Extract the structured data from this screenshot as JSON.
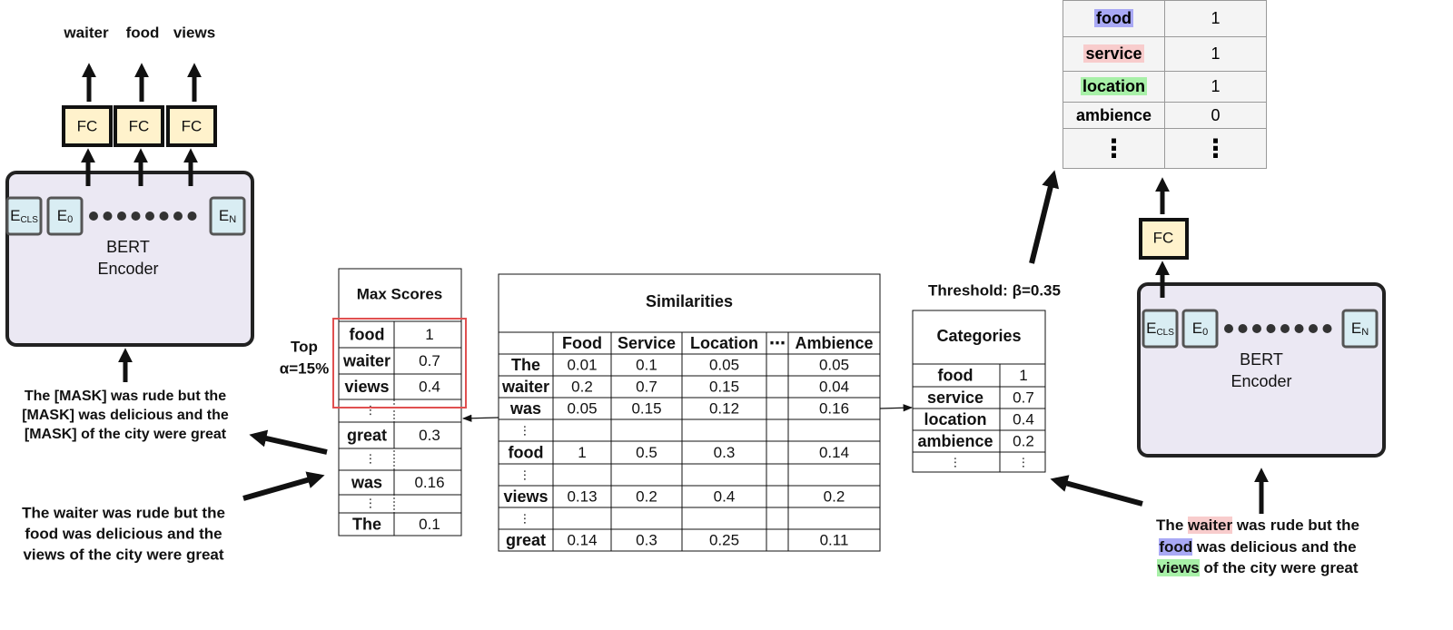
{
  "left_model": {
    "outputs": [
      "waiter",
      "food",
      "views"
    ],
    "fc": [
      "FC",
      "FC",
      "FC"
    ],
    "embeddings": [
      {
        "main": "E",
        "sub": "CLS"
      },
      {
        "main": "E",
        "sub": "0"
      },
      {
        "main": "E",
        "sub": "N"
      }
    ],
    "encoder": [
      "BERT",
      "Encoder"
    ],
    "masked_sentence": [
      "The [MASK] was rude but the",
      "[MASK] was delicious and the",
      "[MASK] of the city were great"
    ]
  },
  "original_sentence": [
    "The waiter was rude but the",
    "food was delicious and the",
    "views of the city were great"
  ],
  "max_scores": {
    "title": "Max Scores",
    "top": [
      "Top",
      "α=15%"
    ],
    "rows": [
      [
        "food",
        "1"
      ],
      [
        "waiter",
        "0.7"
      ],
      [
        "views",
        "0.4"
      ],
      [
        "⋮"
      ],
      [
        "great",
        "0.3"
      ],
      [
        "⋮"
      ],
      [
        "was",
        "0.16"
      ],
      [
        "⋮"
      ],
      [
        "The",
        "0.1"
      ]
    ]
  },
  "similarities": {
    "title": "Similarities",
    "header": [
      "Food",
      "Service",
      "Location",
      "⋯",
      "Ambience"
    ],
    "rows": [
      [
        "The",
        "0.01",
        "0.1",
        "0.05",
        "0.05"
      ],
      [
        "waiter",
        "0.2",
        "0.7",
        "0.15",
        "0.04"
      ],
      [
        "was",
        "0.05",
        "0.15",
        "0.12",
        "0.16"
      ],
      [
        "⋮"
      ],
      [
        "food",
        "1",
        "0.5",
        "0.3",
        "0.14"
      ],
      [
        "⋮"
      ],
      [
        "views",
        "0.13",
        "0.2",
        "0.4",
        "0.2"
      ],
      [
        "⋮"
      ],
      [
        "great",
        "0.14",
        "0.3",
        "0.25",
        "0.11"
      ]
    ]
  },
  "threshold": "Threshold: β=0.35",
  "categories": {
    "title": "Categories",
    "rows": [
      [
        "food",
        "1"
      ],
      [
        "service",
        "0.7"
      ],
      [
        "location",
        "0.4"
      ],
      [
        "ambience",
        "0.2"
      ],
      [
        "⋮",
        "⋮"
      ]
    ]
  },
  "right_model": {
    "fc": "FC",
    "embeddings": [
      {
        "main": "E",
        "sub": "CLS"
      },
      {
        "main": "E",
        "sub": "0"
      },
      {
        "main": "E",
        "sub": "N"
      }
    ],
    "encoder": [
      "BERT",
      "Encoder"
    ],
    "sentence": [
      [
        {
          "text": "The "
        },
        {
          "text": "waiter",
          "highlight": "#f8cccc"
        },
        {
          "text": " was rude but the"
        }
      ],
      [
        {
          "text": "food",
          "highlight": "#a9a9f5"
        },
        {
          "text": " was delicious and the"
        }
      ],
      [
        {
          "text": "views",
          "highlight": "#a8f0a8"
        },
        {
          "text": " of the city were great"
        }
      ]
    ]
  },
  "output": {
    "rows": [
      {
        "label": "food",
        "value": "1",
        "highlight": "#a9a9f5"
      },
      {
        "label": "service",
        "value": "1",
        "highlight": "#f8cccc"
      },
      {
        "label": "location",
        "value": "1",
        "highlight": "#a8f0a8"
      },
      {
        "label": "ambience",
        "value": "0"
      },
      {
        "label": "⋮",
        "value": "⋮"
      }
    ]
  }
}
